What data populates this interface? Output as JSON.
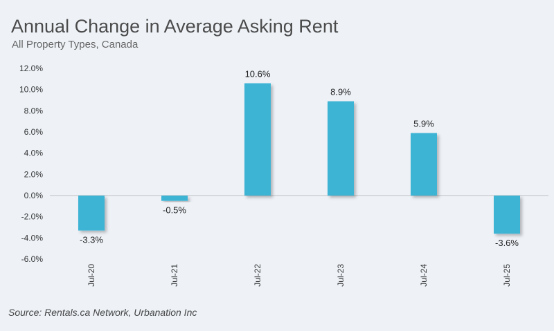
{
  "title": "Annual Change in Average Asking Rent",
  "subtitle": "All Property Types, Canada",
  "source": "Source: Rentals.ca Network, Urbanation Inc",
  "chart_data": {
    "type": "bar",
    "categories": [
      "Jul-20",
      "Jul-21",
      "Jul-22",
      "Jul-23",
      "Jul-24",
      "Jul-25"
    ],
    "values": [
      -3.3,
      -0.5,
      10.6,
      8.9,
      5.9,
      -3.6
    ],
    "value_labels": [
      "-3.3%",
      "-0.5%",
      "10.6%",
      "8.9%",
      "5.9%",
      "-3.6%"
    ],
    "ylim": [
      -6,
      12
    ],
    "yticks": [
      12,
      10,
      8,
      6,
      4,
      2,
      0,
      -2,
      -4,
      -6
    ],
    "ytick_labels": [
      "12.0%",
      "10.0%",
      "8.0%",
      "6.0%",
      "4.0%",
      "2.0%",
      "0.0%",
      "-2.0%",
      "-4.0%",
      "-6.0%"
    ],
    "grid": false,
    "colors": {
      "bar": "#3db4d4",
      "zero_line": "#bfbfbf"
    }
  }
}
